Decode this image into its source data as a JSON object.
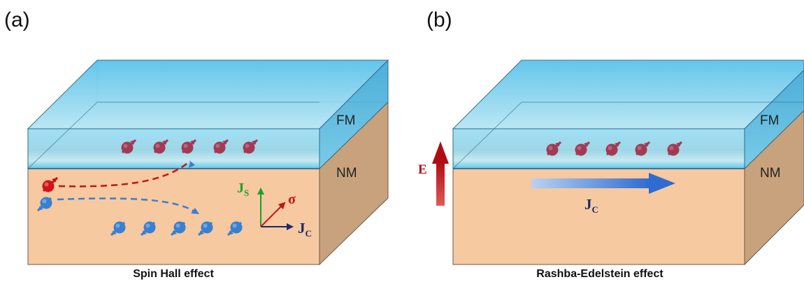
{
  "panels": [
    {
      "letter": "(a)",
      "top_label": "FM",
      "bottom_label": "NM",
      "caption": "Spin Hall effect",
      "axes": {
        "js": "J",
        "js_sub": "S",
        "sigma": "σ",
        "jc": "J",
        "jc_sub": "C"
      }
    },
    {
      "letter": "(b)",
      "top_label": "FM",
      "bottom_label": "NM",
      "caption": "Rashba-Edelstein effect",
      "field": "E",
      "current": "J",
      "current_sub": "C"
    }
  ],
  "colors": {
    "fm_top": "#a8dcf2",
    "fm_front": "#7fd0f0",
    "nm": "#f6c9a0",
    "nm_side": "#c8a27c",
    "spin_up": "#a13b55",
    "spin_down": "#3a7fd0",
    "arrow_red": "#c0141a",
    "arrow_blue": "#2f6bd0",
    "axis_green": "#1aa02a",
    "axis_navy": "#1a2a6e"
  }
}
